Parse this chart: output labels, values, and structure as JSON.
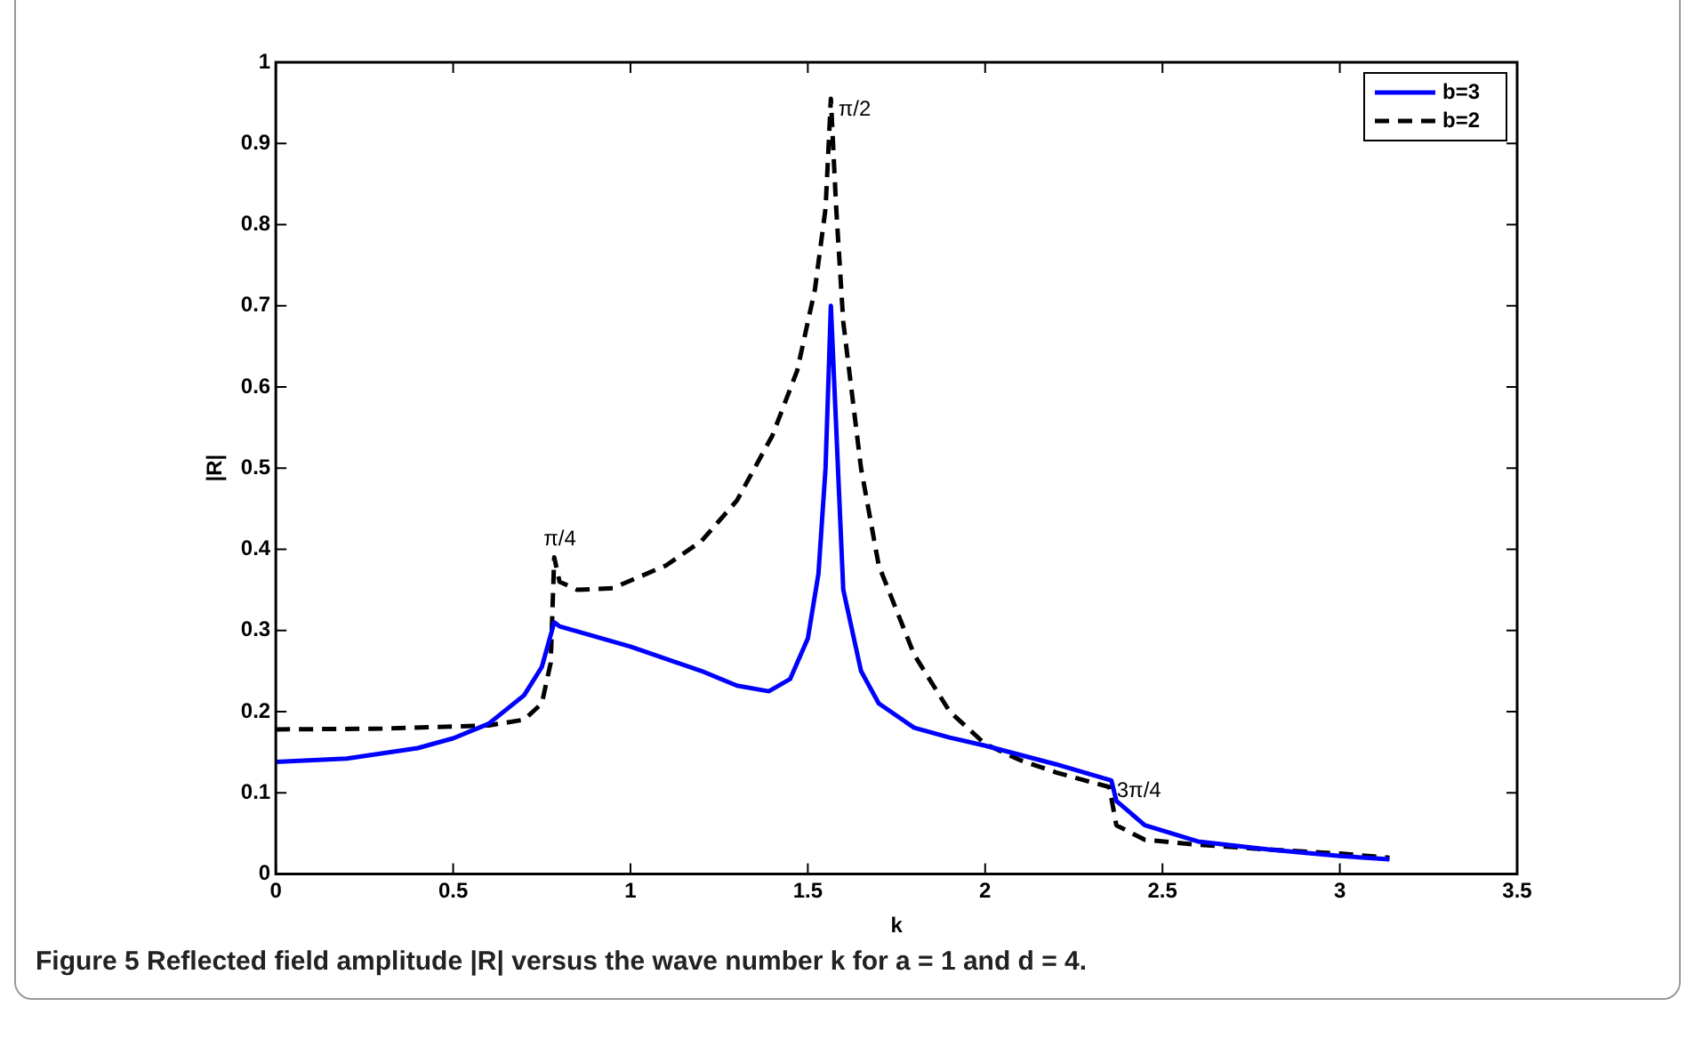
{
  "chart_data": {
    "type": "line",
    "xlabel": "k",
    "ylabel": "|R|",
    "xlim": [
      0,
      3.5
    ],
    "xticks": [
      0,
      0.5,
      1,
      1.5,
      2,
      2.5,
      3,
      3.5
    ],
    "ylim": [
      0,
      1
    ],
    "yticks": [
      0,
      0.1,
      0.2,
      0.3,
      0.4,
      0.5,
      0.6,
      0.7,
      0.8,
      0.9,
      1
    ],
    "grid": false,
    "legend": "top right",
    "marker": "none",
    "series": [
      {
        "name": "b=3",
        "color": "#0000ff",
        "line_style": "solid",
        "x": [
          0,
          0.2,
          0.4,
          0.5,
          0.6,
          0.7,
          0.75,
          0.785,
          0.8,
          1.0,
          1.2,
          1.3,
          1.39,
          1.45,
          1.5,
          1.53,
          1.55,
          1.565,
          1.575,
          1.6,
          1.65,
          1.7,
          1.8,
          1.9,
          2.0,
          2.2,
          2.356,
          2.37,
          2.45,
          2.6,
          2.8,
          3.0,
          3.14
        ],
        "values": [
          0.138,
          0.142,
          0.155,
          0.167,
          0.185,
          0.22,
          0.255,
          0.31,
          0.305,
          0.28,
          0.25,
          0.232,
          0.225,
          0.24,
          0.29,
          0.37,
          0.5,
          0.7,
          0.6,
          0.35,
          0.25,
          0.21,
          0.18,
          0.168,
          0.158,
          0.135,
          0.115,
          0.09,
          0.06,
          0.04,
          0.03,
          0.022,
          0.018
        ]
      },
      {
        "name": "b=2",
        "color": "#000000",
        "line_style": "dashed",
        "x": [
          0,
          0.3,
          0.6,
          0.7,
          0.75,
          0.775,
          0.785,
          0.8,
          0.85,
          0.95,
          1.1,
          1.2,
          1.3,
          1.4,
          1.47,
          1.52,
          1.55,
          1.565,
          1.58,
          1.6,
          1.65,
          1.7,
          1.8,
          1.9,
          2.0,
          2.1,
          2.2,
          2.35,
          2.37,
          2.45,
          2.6,
          2.8,
          3.0,
          3.14
        ],
        "values": [
          0.178,
          0.179,
          0.183,
          0.19,
          0.21,
          0.26,
          0.39,
          0.36,
          0.35,
          0.352,
          0.38,
          0.41,
          0.46,
          0.54,
          0.62,
          0.72,
          0.82,
          0.955,
          0.82,
          0.68,
          0.5,
          0.38,
          0.27,
          0.2,
          0.16,
          0.14,
          0.125,
          0.107,
          0.06,
          0.042,
          0.036,
          0.03,
          0.025,
          0.02
        ]
      }
    ],
    "annotations": [
      {
        "text": "π/4",
        "x": 0.785,
        "y": 0.39
      },
      {
        "text": "π/2",
        "x": 1.571,
        "y": 0.955
      },
      {
        "text": "3π/4",
        "x": 2.356,
        "y": 0.115
      },
      "Figure 5  Reflected field amplitude |R| versus the wave number k for a = 1 and d = 4."
    ]
  }
}
